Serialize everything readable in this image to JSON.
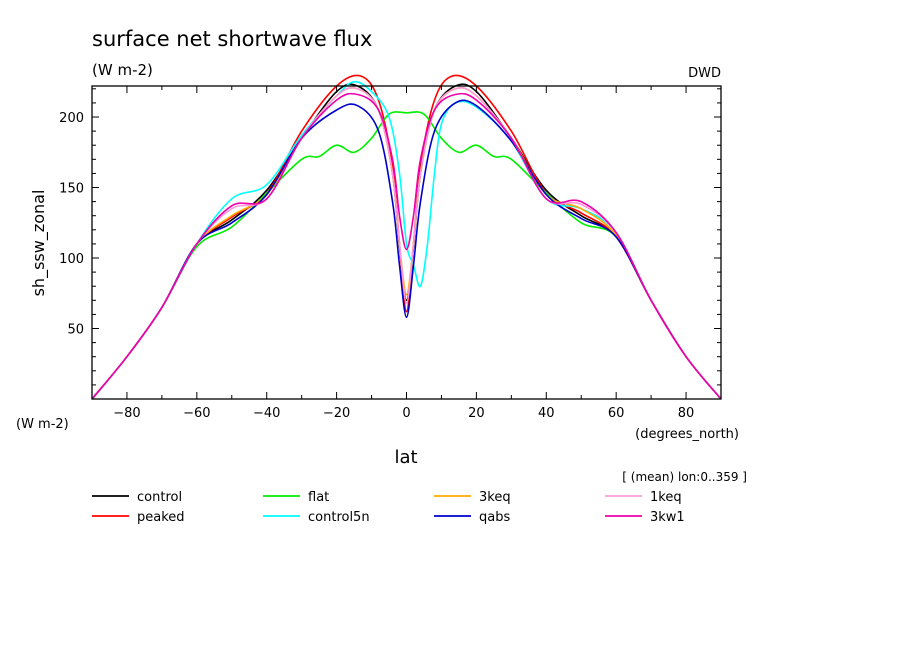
{
  "chart_data": {
    "type": "line",
    "title": "surface net shortwave flux",
    "units": "(W m-2)",
    "source": "DWD",
    "ylabel": "sh_ssw_zonal",
    "y_units": "(W m-2)",
    "xlabel": "lat",
    "x_units": "(degrees_north)",
    "note": "[ (mean) lon:0..359 ]",
    "xlim": [
      -90,
      90
    ],
    "ylim": [
      0,
      222
    ],
    "xticks": [
      -80,
      -60,
      -40,
      -20,
      0,
      20,
      40,
      60,
      80
    ],
    "yticks": [
      50,
      100,
      150,
      200
    ],
    "grid": false,
    "legend_position": "bottom",
    "series": [
      {
        "name": "control",
        "color": "#000000",
        "x": [
          -90,
          -80,
          -70,
          -60,
          -50,
          -40,
          -30,
          -20,
          -14,
          -8,
          -4,
          -2,
          0,
          2,
          4,
          8,
          14,
          20,
          30,
          40,
          50,
          60,
          70,
          80,
          90
        ],
        "y": [
          0,
          30,
          65,
          110,
          127,
          148,
          185,
          218,
          222,
          205,
          160,
          108,
          70,
          108,
          160,
          205,
          222,
          218,
          185,
          148,
          130,
          115,
          70,
          30,
          0
        ]
      },
      {
        "name": "peaked",
        "color": "#ff0000",
        "x": [
          -90,
          -80,
          -70,
          -60,
          -50,
          -40,
          -30,
          -20,
          -13,
          -8,
          -4,
          -2,
          0,
          2,
          4,
          8,
          13,
          20,
          30,
          40,
          50,
          60,
          70,
          80,
          90
        ],
        "y": [
          0,
          30,
          65,
          110,
          129,
          146,
          190,
          222,
          229,
          212,
          165,
          110,
          62,
          110,
          165,
          212,
          229,
          222,
          190,
          146,
          132,
          115,
          70,
          30,
          0
        ]
      },
      {
        "name": "flat",
        "color": "#00ee00",
        "x": [
          -90,
          -80,
          -70,
          -60,
          -50,
          -40,
          -30,
          -25,
          -20,
          -15,
          -10,
          -5,
          0,
          5,
          10,
          15,
          20,
          25,
          30,
          40,
          50,
          60,
          70,
          80,
          90
        ],
        "y": [
          0,
          30,
          65,
          108,
          122,
          146,
          170,
          172,
          180,
          175,
          185,
          202,
          203,
          202,
          185,
          175,
          180,
          172,
          170,
          146,
          125,
          115,
          70,
          30,
          0
        ]
      },
      {
        "name": "control5n",
        "color": "#00ffff",
        "x": [
          -90,
          -80,
          -70,
          -60,
          -50,
          -40,
          -30,
          -20,
          -15,
          -10,
          -5,
          -2,
          0,
          2,
          4,
          6,
          8,
          10,
          14,
          20,
          30,
          40,
          50,
          60,
          70,
          80,
          90
        ],
        "y": [
          0,
          30,
          65,
          110,
          142,
          152,
          187,
          215,
          225,
          218,
          200,
          160,
          110,
          95,
          80,
          110,
          160,
          195,
          210,
          207,
          183,
          142,
          135,
          118,
          70,
          30,
          0
        ]
      },
      {
        "name": "3keq",
        "color": "#ffaa00",
        "x": [
          -90,
          -80,
          -70,
          -60,
          -50,
          -40,
          -30,
          -20,
          -14,
          -8,
          -4,
          -2,
          0,
          2,
          4,
          8,
          14,
          20,
          30,
          40,
          50,
          60,
          70,
          80,
          90
        ],
        "y": [
          0,
          30,
          65,
          110,
          130,
          145,
          185,
          215,
          220,
          205,
          160,
          110,
          74,
          110,
          160,
          205,
          220,
          215,
          185,
          145,
          135,
          116,
          70,
          30,
          0
        ]
      },
      {
        "name": "qabs",
        "color": "#0000cc",
        "x": [
          -90,
          -80,
          -70,
          -60,
          -50,
          -40,
          -30,
          -20,
          -14,
          -8,
          -4,
          -2,
          0,
          2,
          4,
          8,
          14,
          20,
          30,
          40,
          50,
          60,
          70,
          80,
          90
        ],
        "y": [
          0,
          30,
          65,
          110,
          125,
          145,
          185,
          205,
          208,
          190,
          140,
          95,
          58,
          95,
          140,
          190,
          210,
          208,
          183,
          145,
          128,
          115,
          70,
          30,
          0
        ]
      },
      {
        "name": "1keq",
        "color": "#ff99dd",
        "x": [
          -90,
          -80,
          -70,
          -60,
          -50,
          -40,
          -30,
          -20,
          -14,
          -8,
          -4,
          -2,
          0,
          2,
          4,
          8,
          14,
          20,
          30,
          40,
          50,
          60,
          70,
          80,
          90
        ],
        "y": [
          0,
          30,
          65,
          110,
          135,
          142,
          185,
          215,
          220,
          205,
          160,
          110,
          68,
          110,
          160,
          205,
          220,
          215,
          185,
          142,
          138,
          118,
          70,
          30,
          0
        ]
      },
      {
        "name": "3kw1",
        "color": "#ee00aa",
        "x": [
          -90,
          -80,
          -70,
          -60,
          -50,
          -40,
          -30,
          -20,
          -14,
          -8,
          -4,
          -2,
          0,
          2,
          4,
          8,
          14,
          20,
          30,
          40,
          50,
          60,
          70,
          80,
          90
        ],
        "y": [
          0,
          30,
          65,
          110,
          137,
          142,
          185,
          212,
          216,
          205,
          170,
          130,
          106,
          130,
          170,
          205,
          216,
          212,
          185,
          142,
          140,
          118,
          70,
          30,
          0
        ]
      }
    ]
  }
}
